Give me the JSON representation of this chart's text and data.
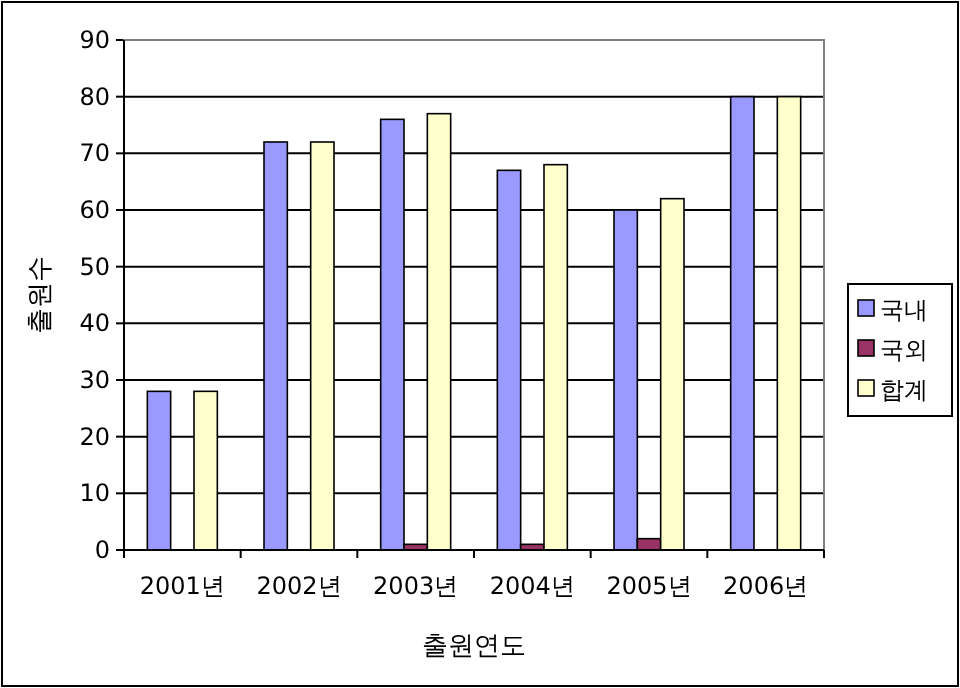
{
  "chart_data": {
    "type": "bar",
    "xlabel": "출원연도",
    "ylabel": "출원수",
    "categories": [
      "2001년",
      "2002년",
      "2003년",
      "2004년",
      "2005년",
      "2006년"
    ],
    "series": [
      {
        "name": "국내",
        "color": "#9999ff",
        "values": [
          28,
          72,
          76,
          67,
          60,
          80
        ]
      },
      {
        "name": "국외",
        "color": "#993366",
        "values": [
          0,
          0,
          1,
          1,
          2,
          0
        ]
      },
      {
        "name": "합계",
        "color": "#ffffcc",
        "values": [
          28,
          72,
          77,
          68,
          62,
          80
        ]
      }
    ],
    "ylim": [
      0,
      90
    ],
    "yticks": [
      0,
      10,
      20,
      30,
      40,
      50,
      60,
      70,
      80,
      90
    ],
    "grid": "y",
    "legend": "right"
  }
}
